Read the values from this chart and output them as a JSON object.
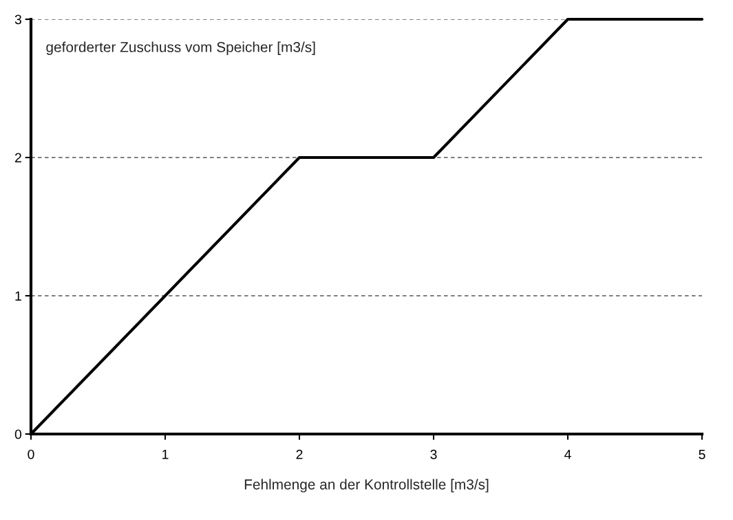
{
  "chart_data": {
    "type": "line",
    "xlabel": "Fehlmenge an der Kontrollstelle [m3/s]",
    "ylabel": "geforderter Zuschuss vom Speicher [m3/s]",
    "x": [
      0,
      2,
      3,
      4,
      5
    ],
    "series": [
      {
        "color": "#000000",
        "values": [
          0,
          2,
          2,
          3,
          3
        ]
      }
    ],
    "xlim": [
      0,
      5
    ],
    "xticks": [
      0,
      1,
      2,
      3,
      4,
      5
    ],
    "ylim": [
      0,
      3
    ],
    "yticks": [
      0,
      1,
      2,
      3
    ],
    "grid": "y",
    "line_style": "solid",
    "marker": "none",
    "legend": false
  }
}
